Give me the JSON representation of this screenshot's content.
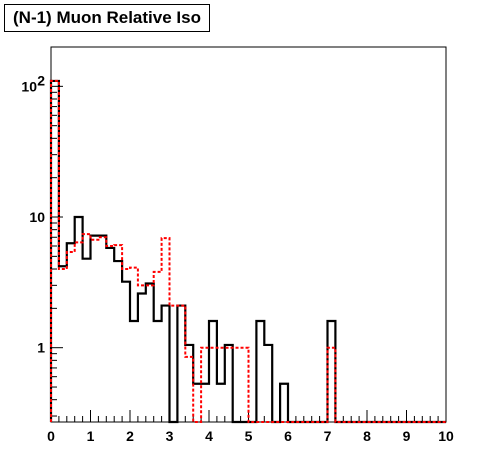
{
  "chart_data": {
    "type": "step",
    "title": "(N-1) Muon Relative Iso",
    "xlabel": "",
    "ylabel": "",
    "xlim": [
      0,
      10
    ],
    "ylim": [
      0.27,
      200
    ],
    "yscale": "log",
    "bin_width": 0.2,
    "x_ticks": [
      "0",
      "1",
      "2",
      "3",
      "4",
      "5",
      "6",
      "7",
      "8",
      "9",
      "10"
    ],
    "y_ticks": [
      {
        "value": 1,
        "label": "1"
      },
      {
        "value": 10,
        "label": "10"
      },
      {
        "value": 100,
        "label": "10",
        "exponent": "2"
      }
    ],
    "series": [
      {
        "color": "#000000",
        "style": "solid",
        "values": [
          110,
          4.2,
          6.3,
          10,
          4.8,
          7.2,
          7.2,
          5.8,
          4.6,
          3.2,
          1.6,
          2.6,
          3.1,
          1.6,
          2.1,
          0,
          2.1,
          1.05,
          0.53,
          0.53,
          1.6,
          0.53,
          1.05,
          0,
          0,
          0,
          1.6,
          1.05,
          0,
          0.53,
          0,
          0,
          0,
          0,
          0,
          1.6,
          0,
          0,
          0,
          0,
          0,
          0,
          0,
          0,
          0,
          0,
          0,
          0,
          0,
          0
        ]
      },
      {
        "color": "#ff0000",
        "style": "dashed",
        "values": [
          110,
          4.0,
          5.4,
          6.4,
          7.4,
          6.7,
          7.0,
          6.0,
          6.1,
          4.0,
          4.1,
          3.0,
          3.0,
          3.8,
          6.9,
          2.1,
          2.1,
          0.85,
          0,
          1.0,
          1.0,
          1.0,
          1.0,
          1.0,
          1.0,
          0,
          0,
          0,
          0,
          0,
          0,
          0,
          0,
          0,
          0,
          1.0,
          0,
          0,
          0,
          0,
          0,
          0,
          0,
          0,
          0,
          0,
          0,
          0,
          0,
          0
        ]
      }
    ]
  }
}
